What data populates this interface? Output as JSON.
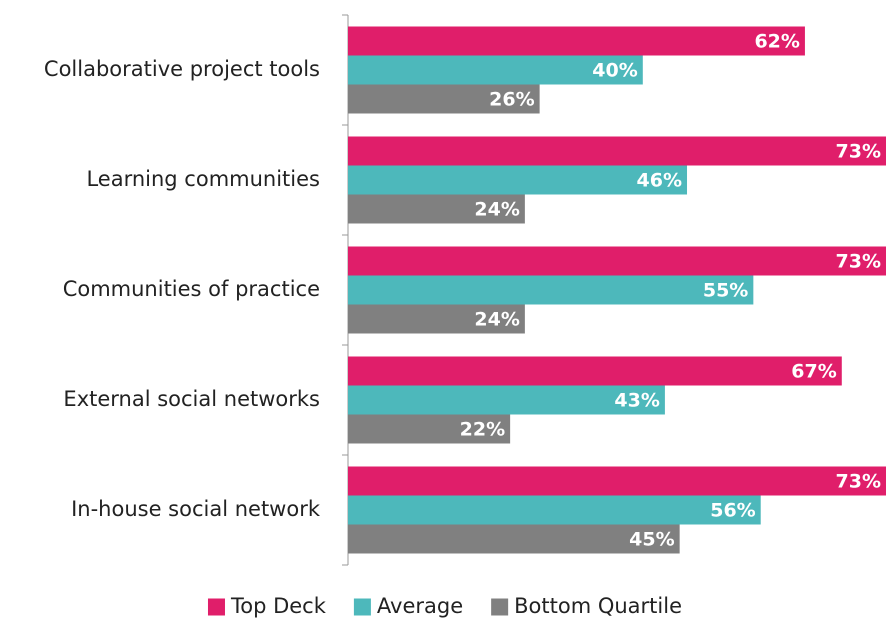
{
  "chart_data": {
    "type": "bar",
    "orientation": "horizontal",
    "categories": [
      "Collaborative project tools",
      "Learning communities",
      "Communities of practice",
      "External social networks",
      "In-house social network"
    ],
    "series": [
      {
        "name": "Top Deck",
        "color": "#e01e6a",
        "values": [
          62,
          73,
          73,
          67,
          73
        ],
        "value_labels": [
          "62%",
          "73%",
          "73%",
          "67%",
          "73%"
        ]
      },
      {
        "name": "Average",
        "color": "#4db8bb",
        "values": [
          40,
          46,
          55,
          43,
          56
        ],
        "value_labels": [
          "40%",
          "46%",
          "55%",
          "43%",
          "56%"
        ]
      },
      {
        "name": "Bottom Quartile",
        "color": "#808080",
        "values": [
          26,
          24,
          24,
          22,
          45
        ],
        "value_labels": [
          "26%",
          "24%",
          "24%",
          "22%",
          "45%"
        ]
      }
    ],
    "xlim": [
      0,
      73
    ],
    "legend": "bottom"
  }
}
